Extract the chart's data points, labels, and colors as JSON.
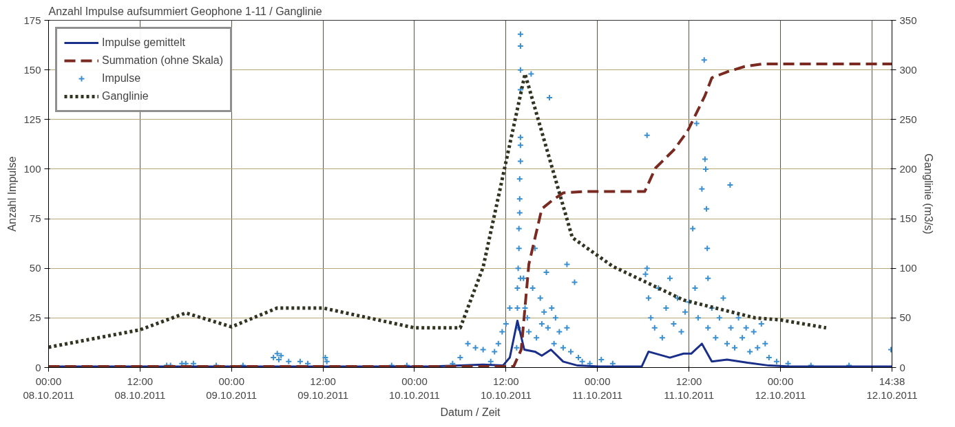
{
  "chart_data": {
    "type": "line",
    "title": "Anzahl Impulse aufsummiert Geophone 1-11 / Ganglinie",
    "xlabel": "Datum / Zeit",
    "ylabel": "Anzahl Impulse",
    "y2label": "Ganglinie (m3/s)",
    "xlim": [
      "2011-10-08T00:00",
      "2011-10-12T14:38"
    ],
    "xticks": [
      {
        "value": "2011-10-08T00:00",
        "label": "00:00\n08.10.2011"
      },
      {
        "value": "2011-10-08T12:00",
        "label": "12:00\n08.10.2011"
      },
      {
        "value": "2011-10-09T00:00",
        "label": "00:00\n09.10.2011"
      },
      {
        "value": "2011-10-09T12:00",
        "label": "12:00\n09.10.2011"
      },
      {
        "value": "2011-10-10T00:00",
        "label": "00:00\n10.10.2011"
      },
      {
        "value": "2011-10-10T12:00",
        "label": "12:00\n10.10.2011"
      },
      {
        "value": "2011-10-11T00:00",
        "label": "00:00\n11.10.2011"
      },
      {
        "value": "2011-10-11T12:00",
        "label": "12:00\n11.10.2011"
      },
      {
        "value": "2011-10-12T00:00",
        "label": "00:00\n12.10.2011"
      },
      {
        "value": "2011-10-12T12:00",
        "label": null
      },
      {
        "value": "2011-10-12T14:38",
        "label": "14:38\n12.10.2011"
      }
    ],
    "ylim": [
      0,
      175
    ],
    "yticks": [
      0,
      25,
      50,
      75,
      100,
      125,
      150,
      175
    ],
    "y2lim": [
      0,
      350
    ],
    "y2ticks": [
      0,
      50,
      100,
      150,
      200,
      250,
      300,
      350
    ],
    "grid": true,
    "legend": "top left",
    "series": [
      {
        "name": "Impulse gemittelt",
        "line_style": "solid",
        "color": "#1a2f8a",
        "x": [
          "2011-10-08T00:00",
          "2011-10-09T16:00",
          "2011-10-10T02:00",
          "2011-10-10T06:00",
          "2011-10-10T09:00",
          "2011-10-10T11:36",
          "2011-10-10T12:30",
          "2011-10-10T13:30",
          "2011-10-10T14:24",
          "2011-10-10T15:48",
          "2011-10-10T16:42",
          "2011-10-10T17:54",
          "2011-10-10T19:30",
          "2011-10-10T21:24",
          "2011-10-11T00:12",
          "2011-10-11T05:48",
          "2011-10-11T06:42",
          "2011-10-11T09:30",
          "2011-10-11T11:18",
          "2011-10-11T12:18",
          "2011-10-11T13:42",
          "2011-10-11T15:00",
          "2011-10-11T17:00",
          "2011-10-11T19:42",
          "2011-10-11T22:30",
          "2011-10-12T01:18",
          "2011-10-12T14:38"
        ],
        "values": [
          0.5,
          0.5,
          0.5,
          1,
          1.5,
          1,
          5,
          23.6,
          9,
          8,
          6,
          9,
          3,
          1,
          0.5,
          0.5,
          8,
          5,
          7,
          7,
          12,
          3,
          4,
          2.4,
          1,
          0.5,
          0.5
        ]
      },
      {
        "name": "Summation (ohne Skala)",
        "line_style": "dashed",
        "color": "#7a2a20",
        "x": [
          "2011-10-08T00:00",
          "2011-10-10T13:00",
          "2011-10-10T14:00",
          "2011-10-10T15:00",
          "2011-10-10T16:42",
          "2011-10-10T18:00",
          "2011-10-10T19:30",
          "2011-10-10T22:18",
          "2011-10-11T06:12",
          "2011-10-11T07:36",
          "2011-10-11T10:00",
          "2011-10-11T11:48",
          "2011-10-11T14:06",
          "2011-10-11T15:00",
          "2011-10-11T17:00",
          "2011-10-11T19:18",
          "2011-10-11T21:36",
          "2011-10-12T14:38"
        ],
        "values": [
          0.5,
          0.5,
          9,
          52,
          80,
          84,
          88,
          88.7,
          88.7,
          100.5,
          109.6,
          119,
          137,
          146,
          149,
          151.7,
          153,
          153
        ]
      },
      {
        "name": "Impulse",
        "type": "scatter",
        "marker": "cross",
        "color": "#3a8fd0",
        "x": [
          "2011-10-08T15:30",
          "2011-10-08T16:00",
          "2011-10-08T17:30",
          "2011-10-08T18:00",
          "2011-10-08T19:00",
          "2011-10-08T22:00",
          "2011-10-09T01:30",
          "2011-10-09T05:30",
          "2011-10-09T06:00",
          "2011-10-09T06:12",
          "2011-10-09T06:30",
          "2011-10-09T07:30",
          "2011-10-09T09:00",
          "2011-10-09T10:00",
          "2011-10-09T12:18",
          "2011-10-09T12:30",
          "2011-10-09T21:00",
          "2011-10-09T23:00",
          "2011-10-10T05:00",
          "2011-10-10T06:00",
          "2011-10-10T07:00",
          "2011-10-10T08:00",
          "2011-10-10T09:00",
          "2011-10-10T10:00",
          "2011-10-10T10:30",
          "2011-10-10T11:00",
          "2011-10-10T11:30",
          "2011-10-10T12:00",
          "2011-10-10T12:30",
          "2011-10-10T13:24",
          "2011-10-10T13:30",
          "2011-10-10T13:30",
          "2011-10-10T13:36",
          "2011-10-10T13:36",
          "2011-10-10T13:42",
          "2011-10-10T13:42",
          "2011-10-10T13:48",
          "2011-10-10T13:48",
          "2011-10-10T13:48",
          "2011-10-10T13:54",
          "2011-10-10T13:54",
          "2011-10-10T13:54",
          "2011-10-10T13:54",
          "2011-10-10T13:54",
          "2011-10-10T13:54",
          "2011-10-10T13:54",
          "2011-10-10T13:54",
          "2011-10-10T14:18",
          "2011-10-10T14:30",
          "2011-10-10T14:48",
          "2011-10-10T15:00",
          "2011-10-10T15:18",
          "2011-10-10T15:30",
          "2011-10-10T15:48",
          "2011-10-10T16:00",
          "2011-10-10T16:30",
          "2011-10-10T16:42",
          "2011-10-10T17:00",
          "2011-10-10T17:18",
          "2011-10-10T17:30",
          "2011-10-10T17:42",
          "2011-10-10T18:00",
          "2011-10-10T18:18",
          "2011-10-10T18:30",
          "2011-10-10T19:00",
          "2011-10-10T19:30",
          "2011-10-10T20:00",
          "2011-10-10T20:00",
          "2011-10-10T20:30",
          "2011-10-10T21:00",
          "2011-10-10T21:30",
          "2011-10-10T22:00",
          "2011-10-10T23:00",
          "2011-10-11T00:30",
          "2011-10-11T02:00",
          "2011-10-11T06:18",
          "2011-10-11T06:30",
          "2011-10-11T06:30",
          "2011-10-11T06:42",
          "2011-10-11T07:00",
          "2011-10-11T07:30",
          "2011-10-11T08:00",
          "2011-10-11T08:30",
          "2011-10-11T09:00",
          "2011-10-11T09:30",
          "2011-10-11T10:00",
          "2011-10-11T10:30",
          "2011-10-11T11:00",
          "2011-10-11T11:30",
          "2011-10-11T12:00",
          "2011-10-11T12:30",
          "2011-10-11T12:48",
          "2011-10-11T13:00",
          "2011-10-11T13:12",
          "2011-10-11T13:42",
          "2011-10-11T14:00",
          "2011-10-11T14:06",
          "2011-10-11T14:12",
          "2011-10-11T14:18",
          "2011-10-11T14:24",
          "2011-10-11T14:30",
          "2011-10-11T14:30",
          "2011-10-11T15:00",
          "2011-10-11T15:30",
          "2011-10-11T16:00",
          "2011-10-11T16:30",
          "2011-10-11T17:00",
          "2011-10-11T17:24",
          "2011-10-11T17:30",
          "2011-10-11T18:00",
          "2011-10-11T18:30",
          "2011-10-11T19:00",
          "2011-10-11T19:30",
          "2011-10-11T20:00",
          "2011-10-11T20:30",
          "2011-10-11T21:00",
          "2011-10-11T21:30",
          "2011-10-11T22:00",
          "2011-10-11T22:30",
          "2011-10-11T23:30",
          "2011-10-12T01:00",
          "2011-10-12T04:00",
          "2011-10-12T09:00",
          "2011-10-12T14:30"
        ],
        "values": [
          1,
          1,
          2,
          2,
          2,
          1,
          1,
          5,
          7,
          4,
          6,
          3,
          3,
          2,
          5,
          3,
          1,
          1,
          2,
          5,
          12,
          10,
          9,
          3,
          8,
          12,
          18,
          22,
          30,
          10,
          40,
          30,
          50,
          20,
          60,
          70,
          78,
          85,
          95,
          104,
          112,
          116,
          140,
          150,
          162,
          168,
          45,
          45,
          30,
          25,
          18,
          148,
          40,
          60,
          15,
          35,
          22,
          28,
          48,
          20,
          136,
          30,
          12,
          25,
          18,
          10,
          52,
          20,
          8,
          43,
          5,
          3,
          2,
          4,
          2,
          47,
          50,
          117,
          35,
          25,
          20,
          40,
          15,
          30,
          45,
          22,
          35,
          18,
          28,
          33,
          70,
          40,
          123,
          25,
          90,
          155,
          105,
          100,
          80,
          60,
          45,
          20,
          30,
          15,
          25,
          35,
          12,
          92,
          20,
          10,
          25,
          15,
          20,
          8,
          18,
          10,
          22,
          12,
          5,
          3,
          2,
          1,
          1,
          9
        ]
      },
      {
        "name": "Ganglinie",
        "axis": "y2",
        "line_style": "dotted",
        "color": "#333322",
        "x": [
          "2011-10-08T00:00",
          "2011-10-08T12:00",
          "2011-10-08T18:00",
          "2011-10-09T00:00",
          "2011-10-09T06:00",
          "2011-10-09T12:00",
          "2011-10-10T00:00",
          "2011-10-10T06:00",
          "2011-10-10T09:00",
          "2011-10-10T14:30",
          "2011-10-10T20:42",
          "2011-10-11T02:00",
          "2011-10-11T11:18",
          "2011-10-11T20:42",
          "2011-10-12T00:00",
          "2011-10-12T06:00"
        ],
        "values": [
          20.5,
          38,
          55,
          41,
          60,
          60,
          40,
          40,
          101,
          296,
          131,
          102,
          68,
          50,
          48,
          40
        ]
      }
    ]
  }
}
